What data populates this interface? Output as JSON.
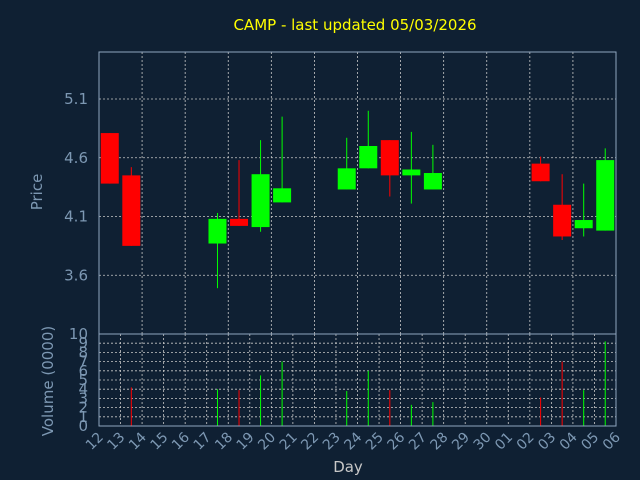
{
  "chart_data": {
    "type": "candlestick",
    "title": "CAMP - last updated 05/03/2026",
    "xlabel": "Day",
    "ylabel": "Price",
    "volume_label": "Volume (0000)",
    "x_ticks": [
      "12",
      "13",
      "14",
      "15",
      "16",
      "17",
      "18",
      "19",
      "20",
      "21",
      "22",
      "23",
      "24",
      "25",
      "26",
      "27",
      "28",
      "29",
      "30",
      "01",
      "02",
      "03",
      "04",
      "05",
      "06"
    ],
    "y_ticks": [
      "3.6",
      "4.1",
      "4.6",
      "5.1"
    ],
    "ylim": [
      3.1,
      5.5
    ],
    "volume_ticks": [
      "0",
      "1",
      "2",
      "3",
      "4",
      "5",
      "6",
      "7",
      "8",
      "9",
      "10"
    ],
    "volume_ylim": [
      0,
      10
    ],
    "grid": true,
    "colors": {
      "up": "#00ff00",
      "down": "#ff0000",
      "grid": "#c8c8c8",
      "frame": "#8fa6bf"
    },
    "candles": [
      {
        "day": "12",
        "open": 4.81,
        "high": 4.81,
        "low": 4.38,
        "close": 4.38,
        "volume": 0
      },
      {
        "day": "13",
        "open": 4.45,
        "high": 4.52,
        "low": 3.85,
        "close": 3.85,
        "volume": 4.2
      },
      {
        "day": "17",
        "open": 3.87,
        "high": 4.13,
        "low": 3.49,
        "close": 4.08,
        "volume": 4.0
      },
      {
        "day": "18",
        "open": 4.08,
        "high": 4.58,
        "low": 4.02,
        "close": 4.02,
        "volume": 3.9
      },
      {
        "day": "19",
        "open": 4.01,
        "high": 4.75,
        "low": 3.97,
        "close": 4.46,
        "volume": 5.5
      },
      {
        "day": "20",
        "open": 4.22,
        "high": 4.95,
        "low": 4.22,
        "close": 4.34,
        "volume": 7.0
      },
      {
        "day": "23",
        "open": 4.33,
        "high": 4.77,
        "low": 4.33,
        "close": 4.51,
        "volume": 3.8
      },
      {
        "day": "24",
        "open": 4.51,
        "high": 5.0,
        "low": 4.51,
        "close": 4.7,
        "volume": 6.0
      },
      {
        "day": "25",
        "open": 4.75,
        "high": 4.75,
        "low": 4.27,
        "close": 4.45,
        "volume": 3.9
      },
      {
        "day": "26",
        "open": 4.45,
        "high": 4.82,
        "low": 4.21,
        "close": 4.5,
        "volume": 2.3
      },
      {
        "day": "27",
        "open": 4.33,
        "high": 4.71,
        "low": 4.33,
        "close": 4.47,
        "volume": 2.6
      },
      {
        "day": "02",
        "open": 4.55,
        "high": 4.61,
        "low": 4.4,
        "close": 4.4,
        "volume": 3.1
      },
      {
        "day": "03",
        "open": 4.2,
        "high": 4.46,
        "low": 3.9,
        "close": 3.93,
        "volume": 7.0
      },
      {
        "day": "04",
        "open": 4.0,
        "high": 4.38,
        "low": 3.93,
        "close": 4.07,
        "volume": 3.9
      },
      {
        "day": "05",
        "open": 3.98,
        "high": 4.68,
        "low": 3.98,
        "close": 4.58,
        "volume": 9.2
      }
    ]
  }
}
